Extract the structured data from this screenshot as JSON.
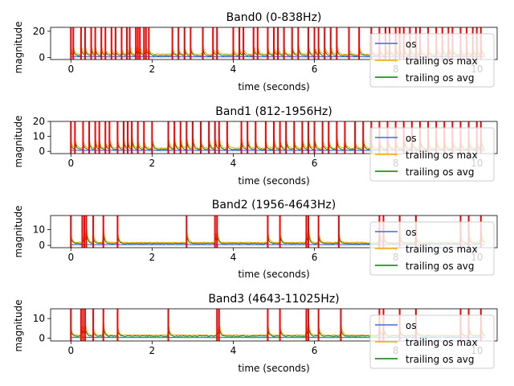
{
  "chart_data": [
    {
      "type": "line",
      "title": "Band0 (0-838Hz)",
      "xlabel": "time (seconds)",
      "ylabel": "magnitude",
      "xlim": [
        -0.5,
        10.5
      ],
      "ylim": [
        -1.5,
        23
      ],
      "xticks": [
        0,
        2,
        4,
        6,
        8,
        10
      ],
      "xtick_labels": [
        "0",
        "2",
        "4",
        "6",
        "8",
        "10"
      ],
      "yticks": [
        0,
        20
      ],
      "ytick_labels": [
        "0",
        "20"
      ],
      "onsets": [
        0.0,
        0.06,
        0.25,
        0.35,
        0.5,
        0.6,
        0.75,
        0.85,
        1.0,
        1.1,
        1.25,
        1.38,
        1.45,
        1.6,
        1.65,
        1.7,
        1.8,
        1.85,
        1.92,
        2.5,
        2.65,
        2.8,
        2.95,
        3.25,
        3.5,
        3.6,
        4.0,
        4.15,
        4.25,
        4.5,
        4.6,
        4.85,
        5.0,
        5.1,
        5.25,
        5.45,
        5.6,
        5.85,
        6.0,
        6.1,
        6.25,
        6.4,
        6.55,
        6.85,
        7.1,
        7.4,
        7.6,
        7.75,
        7.85,
        8.0,
        8.1,
        8.2,
        8.35,
        8.5,
        8.6,
        8.8,
        9.0,
        9.15,
        9.3,
        9.4,
        9.6,
        9.75,
        9.9,
        10.0,
        10.1
      ],
      "series": [
        {
          "name": "os",
          "color": "#4169e1",
          "baseline": 0.6,
          "amplitude": 0.3
        },
        {
          "name": "trailing os max",
          "color": "#ffa500",
          "baseline": 2.5,
          "amplitude": 9
        },
        {
          "name": "trailing os avg",
          "color": "#008000",
          "baseline": 1.5,
          "amplitude": 6
        }
      ],
      "legend": "top-right"
    },
    {
      "type": "line",
      "title": "Band1 (812-1956Hz)",
      "xlabel": "time (seconds)",
      "ylabel": "magnitude",
      "xlim": [
        -0.5,
        10.5
      ],
      "ylim": [
        -1.5,
        20
      ],
      "xticks": [
        0,
        2,
        4,
        6,
        8,
        10
      ],
      "xtick_labels": [
        "0",
        "2",
        "4",
        "6",
        "8",
        "10"
      ],
      "yticks": [
        0,
        10,
        20
      ],
      "ytick_labels": [
        "0",
        "10",
        "20"
      ],
      "onsets": [
        0.0,
        0.1,
        0.3,
        0.45,
        0.6,
        0.7,
        0.85,
        0.95,
        1.15,
        1.3,
        1.4,
        1.5,
        1.65,
        1.8,
        2.0,
        2.4,
        2.55,
        2.7,
        2.85,
        3.0,
        3.2,
        3.4,
        3.55,
        3.65,
        3.85,
        4.2,
        4.35,
        4.55,
        4.8,
        5.0,
        5.15,
        5.3,
        5.5,
        5.7,
        5.85,
        6.0,
        6.2,
        6.35,
        6.55,
        6.75,
        7.0,
        7.2,
        7.4,
        7.6,
        7.8,
        8.0,
        8.2,
        8.4,
        8.6,
        8.8,
        9.0,
        9.2,
        9.4,
        9.6,
        9.8,
        10.0,
        10.1
      ],
      "series": [
        {
          "name": "os",
          "color": "#4169e1",
          "baseline": 0.6,
          "amplitude": 0.3
        },
        {
          "name": "trailing os max",
          "color": "#ffa500",
          "baseline": 2.2,
          "amplitude": 10
        },
        {
          "name": "trailing os avg",
          "color": "#008000",
          "baseline": 1.3,
          "amplitude": 7
        }
      ],
      "legend": "top-right"
    },
    {
      "type": "line",
      "title": "Band2 (1956-4643Hz)",
      "xlabel": "time (seconds)",
      "ylabel": "magnitude",
      "xlim": [
        -0.5,
        10.5
      ],
      "ylim": [
        -1.5,
        19
      ],
      "xticks": [
        0,
        2,
        4,
        6,
        8,
        10
      ],
      "xtick_labels": [
        "0",
        "2",
        "4",
        "6",
        "8",
        "10"
      ],
      "yticks": [
        0,
        10
      ],
      "ytick_labels": [
        "0",
        "10"
      ],
      "onsets": [
        0.0,
        0.28,
        0.33,
        0.38,
        0.55,
        0.8,
        1.15,
        2.85,
        3.55,
        3.6,
        4.85,
        5.15,
        5.8,
        5.85,
        6.1,
        6.6,
        7.6,
        7.7,
        8.1,
        8.5,
        9.6,
        9.8,
        10.1
      ],
      "series": [
        {
          "name": "os",
          "color": "#4169e1",
          "baseline": 0.4,
          "amplitude": 0.3
        },
        {
          "name": "trailing os max",
          "color": "#ffa500",
          "baseline": 1.8,
          "amplitude": 11
        },
        {
          "name": "trailing os avg",
          "color": "#008000",
          "baseline": 1.2,
          "amplitude": 7
        }
      ],
      "legend": "top-right"
    },
    {
      "type": "line",
      "title": "Band3 (4643-11025Hz)",
      "xlabel": "time (seconds)",
      "ylabel": "magnitude",
      "xlim": [
        -0.5,
        10.5
      ],
      "ylim": [
        -1.5,
        15
      ],
      "xticks": [
        0,
        2,
        4,
        6,
        8,
        10
      ],
      "xtick_labels": [
        "0",
        "2",
        "4",
        "6",
        "8",
        "10"
      ],
      "yticks": [
        0,
        10
      ],
      "ytick_labels": [
        "0",
        "10"
      ],
      "onsets": [
        0.0,
        0.25,
        0.3,
        0.35,
        0.55,
        0.8,
        1.15,
        2.4,
        3.6,
        3.65,
        4.85,
        5.15,
        5.8,
        5.85,
        6.1,
        6.65,
        7.6,
        7.7,
        8.1,
        8.5,
        9.6,
        9.8,
        10.1
      ],
      "series": [
        {
          "name": "os",
          "color": "#4169e1",
          "baseline": 0.3,
          "amplitude": 0.3
        },
        {
          "name": "trailing os max",
          "color": "#ffa500",
          "baseline": 1.5,
          "amplitude": 8
        },
        {
          "name": "trailing os avg",
          "color": "#008000",
          "baseline": 1.0,
          "amplitude": 5
        }
      ],
      "legend": "top-right"
    }
  ],
  "onset_color": "#ff0000"
}
